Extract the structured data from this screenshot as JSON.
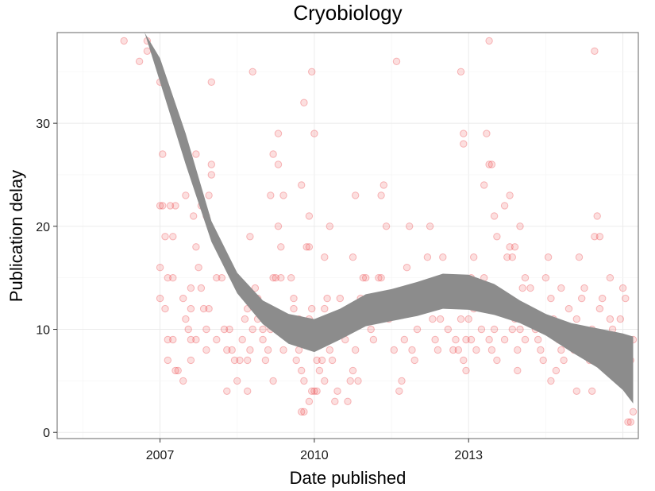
{
  "chart_data": {
    "type": "scatter",
    "title": "Cryobiology",
    "xlabel": "Date published",
    "ylabel": "Publication delay",
    "xlim": [
      2005.0,
      2016.3
    ],
    "ylim": [
      -0.6,
      38.8
    ],
    "x_ticks": [
      2007,
      2010,
      2013
    ],
    "x_tick_labels": [
      "2007",
      "2010",
      "2013"
    ],
    "y_ticks": [
      0,
      10,
      20,
      30
    ],
    "y_tick_labels": [
      "0",
      "10",
      "20",
      "30"
    ],
    "grid": true,
    "legend": "none",
    "point_color": "#e8262b",
    "band_color": "#8c8c8c",
    "points": [
      [
        2006.3,
        38
      ],
      [
        2006.6,
        36
      ],
      [
        2006.75,
        38
      ],
      [
        2006.75,
        37
      ],
      [
        2007.0,
        34
      ],
      [
        2007.05,
        27
      ],
      [
        2007.0,
        22
      ],
      [
        2007.05,
        22
      ],
      [
        2007.1,
        19
      ],
      [
        2007.25,
        19
      ],
      [
        2007.15,
        15
      ],
      [
        2007.25,
        15
      ],
      [
        2007.2,
        22
      ],
      [
        2007.3,
        22
      ],
      [
        2007.0,
        16
      ],
      [
        2007.0,
        13
      ],
      [
        2007.1,
        12
      ],
      [
        2007.15,
        9
      ],
      [
        2007.15,
        7
      ],
      [
        2007.25,
        9
      ],
      [
        2007.3,
        6
      ],
      [
        2007.35,
        6
      ],
      [
        2007.2,
        32
      ],
      [
        2007.45,
        13
      ],
      [
        2007.5,
        11
      ],
      [
        2007.55,
        10
      ],
      [
        2007.6,
        9
      ],
      [
        2007.6,
        12
      ],
      [
        2007.5,
        23
      ],
      [
        2007.65,
        21
      ],
      [
        2007.7,
        18
      ],
      [
        2007.75,
        16
      ],
      [
        2007.8,
        14
      ],
      [
        2007.6,
        14
      ],
      [
        2007.7,
        27
      ],
      [
        2007.8,
        22
      ],
      [
        2007.9,
        21
      ],
      [
        2007.95,
        23
      ],
      [
        2007.85,
        12
      ],
      [
        2007.95,
        12
      ],
      [
        2007.9,
        8
      ],
      [
        2007.6,
        7
      ],
      [
        2007.45,
        5
      ],
      [
        2007.9,
        10
      ],
      [
        2007.7,
        9
      ],
      [
        2008.0,
        34
      ],
      [
        2008.0,
        26
      ],
      [
        2008.0,
        25
      ],
      [
        2008.1,
        15
      ],
      [
        2008.2,
        15
      ],
      [
        2008.3,
        8
      ],
      [
        2008.25,
        10
      ],
      [
        2008.35,
        10
      ],
      [
        2008.4,
        8
      ],
      [
        2008.45,
        7
      ],
      [
        2008.5,
        5
      ],
      [
        2008.3,
        4
      ],
      [
        2008.1,
        9
      ],
      [
        2008.55,
        7
      ],
      [
        2008.6,
        9
      ],
      [
        2008.7,
        7
      ],
      [
        2008.75,
        8
      ],
      [
        2008.8,
        10
      ],
      [
        2008.85,
        14
      ],
      [
        2008.9,
        13
      ],
      [
        2008.7,
        12
      ],
      [
        2008.65,
        11
      ],
      [
        2008.7,
        4
      ],
      [
        2008.75,
        19
      ],
      [
        2008.9,
        11
      ],
      [
        2009.0,
        9
      ],
      [
        2009.05,
        7
      ],
      [
        2009.1,
        8
      ],
      [
        2009.15,
        10
      ],
      [
        2009.0,
        10
      ],
      [
        2009.15,
        23
      ],
      [
        2009.2,
        27
      ],
      [
        2009.3,
        29
      ],
      [
        2009.3,
        26
      ],
      [
        2009.2,
        15
      ],
      [
        2009.25,
        15
      ],
      [
        2009.35,
        15
      ],
      [
        2009.4,
        8
      ],
      [
        2009.45,
        10
      ],
      [
        2009.4,
        23
      ],
      [
        2009.3,
        20
      ],
      [
        2009.35,
        18
      ],
      [
        2009.2,
        5
      ],
      [
        2008.8,
        35
      ],
      [
        2009.5,
        10
      ],
      [
        2009.55,
        15
      ],
      [
        2009.6,
        13
      ],
      [
        2009.65,
        7
      ],
      [
        2009.7,
        8
      ],
      [
        2009.75,
        6
      ],
      [
        2009.8,
        5
      ],
      [
        2009.85,
        9
      ],
      [
        2009.9,
        11
      ],
      [
        2009.95,
        12
      ],
      [
        2009.75,
        24
      ],
      [
        2009.8,
        32
      ],
      [
        2009.85,
        18
      ],
      [
        2009.9,
        18
      ],
      [
        2009.95,
        35
      ],
      [
        2010.0,
        29
      ],
      [
        2009.9,
        21
      ],
      [
        2009.6,
        12
      ],
      [
        2009.7,
        11
      ],
      [
        2009.75,
        2
      ],
      [
        2009.8,
        2
      ],
      [
        2009.9,
        3
      ],
      [
        2009.95,
        4
      ],
      [
        2010.0,
        4
      ],
      [
        2010.05,
        4
      ],
      [
        2010.1,
        6
      ],
      [
        2010.15,
        7
      ],
      [
        2010.2,
        5
      ],
      [
        2010.05,
        7
      ],
      [
        2010.1,
        10
      ],
      [
        2010.2,
        12
      ],
      [
        2010.25,
        13
      ],
      [
        2010.3,
        8
      ],
      [
        2010.35,
        7
      ],
      [
        2010.2,
        17
      ],
      [
        2010.3,
        20
      ],
      [
        2010.4,
        3
      ],
      [
        2010.45,
        4
      ],
      [
        2010.5,
        13
      ],
      [
        2010.55,
        10
      ],
      [
        2010.6,
        9
      ],
      [
        2010.65,
        3
      ],
      [
        2010.7,
        5
      ],
      [
        2010.75,
        6
      ],
      [
        2010.8,
        8
      ],
      [
        2010.85,
        5
      ],
      [
        2010.9,
        13
      ],
      [
        2010.75,
        17
      ],
      [
        2010.8,
        23
      ],
      [
        2010.95,
        15
      ],
      [
        2011.0,
        15
      ],
      [
        2011.05,
        13
      ],
      [
        2011.1,
        10
      ],
      [
        2011.15,
        9
      ],
      [
        2011.2,
        12
      ],
      [
        2011.25,
        15
      ],
      [
        2011.3,
        15
      ],
      [
        2011.3,
        23
      ],
      [
        2011.35,
        24
      ],
      [
        2011.4,
        20
      ],
      [
        2011.45,
        11
      ],
      [
        2011.5,
        12
      ],
      [
        2011.55,
        8
      ],
      [
        2011.6,
        36
      ],
      [
        2011.65,
        4
      ],
      [
        2011.7,
        5
      ],
      [
        2011.75,
        9
      ],
      [
        2011.8,
        16
      ],
      [
        2011.85,
        20
      ],
      [
        2011.9,
        8
      ],
      [
        2011.95,
        7
      ],
      [
        2012.0,
        10
      ],
      [
        2012.05,
        13
      ],
      [
        2012.1,
        14
      ],
      [
        2012.15,
        13
      ],
      [
        2012.2,
        17
      ],
      [
        2012.25,
        20
      ],
      [
        2012.3,
        11
      ],
      [
        2012.35,
        9
      ],
      [
        2012.4,
        8
      ],
      [
        2012.45,
        11
      ],
      [
        2012.5,
        17
      ],
      [
        2012.55,
        14
      ],
      [
        2012.6,
        10
      ],
      [
        2012.65,
        15
      ],
      [
        2012.7,
        8
      ],
      [
        2012.75,
        9
      ],
      [
        2012.8,
        8
      ],
      [
        2012.85,
        11
      ],
      [
        2012.9,
        7
      ],
      [
        2012.95,
        9
      ],
      [
        2013.0,
        14
      ],
      [
        2013.05,
        15
      ],
      [
        2013.1,
        17
      ],
      [
        2012.95,
        6
      ],
      [
        2012.9,
        29
      ],
      [
        2012.85,
        35
      ],
      [
        2012.9,
        28
      ],
      [
        2013.0,
        11
      ],
      [
        2013.05,
        9
      ],
      [
        2013.1,
        12
      ],
      [
        2013.15,
        8
      ],
      [
        2013.2,
        13
      ],
      [
        2013.25,
        10
      ],
      [
        2013.3,
        15
      ],
      [
        2013.35,
        14
      ],
      [
        2013.4,
        9
      ],
      [
        2013.45,
        8
      ],
      [
        2013.5,
        10
      ],
      [
        2013.55,
        7
      ],
      [
        2013.3,
        24
      ],
      [
        2013.35,
        29
      ],
      [
        2013.4,
        26
      ],
      [
        2013.45,
        26
      ],
      [
        2013.4,
        38
      ],
      [
        2013.5,
        21
      ],
      [
        2013.55,
        19
      ],
      [
        2013.6,
        12
      ],
      [
        2013.65,
        13
      ],
      [
        2013.7,
        9
      ],
      [
        2013.75,
        17
      ],
      [
        2013.8,
        18
      ],
      [
        2013.85,
        10
      ],
      [
        2013.9,
        11
      ],
      [
        2013.95,
        8
      ],
      [
        2014.0,
        10
      ],
      [
        2014.05,
        14
      ],
      [
        2014.1,
        15
      ],
      [
        2013.7,
        22
      ],
      [
        2013.8,
        23
      ],
      [
        2013.85,
        17
      ],
      [
        2013.9,
        18
      ],
      [
        2014.0,
        20
      ],
      [
        2013.95,
        6
      ],
      [
        2014.1,
        9
      ],
      [
        2014.15,
        12
      ],
      [
        2014.2,
        14
      ],
      [
        2014.25,
        11
      ],
      [
        2014.3,
        10
      ],
      [
        2014.35,
        9
      ],
      [
        2014.4,
        8
      ],
      [
        2014.45,
        7
      ],
      [
        2014.5,
        15
      ],
      [
        2014.55,
        17
      ],
      [
        2014.6,
        13
      ],
      [
        2014.65,
        11
      ],
      [
        2014.7,
        10
      ],
      [
        2014.75,
        9
      ],
      [
        2014.8,
        8
      ],
      [
        2014.85,
        7
      ],
      [
        2014.6,
        5
      ],
      [
        2014.7,
        6
      ],
      [
        2014.8,
        14
      ],
      [
        2014.9,
        10
      ],
      [
        2014.95,
        12
      ],
      [
        2015.0,
        9
      ],
      [
        2015.05,
        8
      ],
      [
        2015.1,
        11
      ],
      [
        2015.15,
        17
      ],
      [
        2015.2,
        13
      ],
      [
        2015.25,
        14
      ],
      [
        2015.3,
        9
      ],
      [
        2015.35,
        7
      ],
      [
        2015.4,
        10
      ],
      [
        2015.45,
        9
      ],
      [
        2015.5,
        8
      ],
      [
        2015.55,
        12
      ],
      [
        2015.1,
        4
      ],
      [
        2015.4,
        4
      ],
      [
        2015.45,
        37
      ],
      [
        2015.5,
        21
      ],
      [
        2015.55,
        19
      ],
      [
        2015.45,
        19
      ],
      [
        2015.6,
        13
      ],
      [
        2015.65,
        9
      ],
      [
        2015.7,
        8
      ],
      [
        2015.75,
        11
      ],
      [
        2015.8,
        10
      ],
      [
        2015.85,
        9
      ],
      [
        2015.9,
        7
      ],
      [
        2015.95,
        11
      ],
      [
        2016.0,
        14
      ],
      [
        2016.05,
        13
      ],
      [
        2016.1,
        9
      ],
      [
        2016.15,
        7
      ],
      [
        2016.1,
        1
      ],
      [
        2016.15,
        1
      ],
      [
        2016.2,
        2
      ],
      [
        2016.2,
        9
      ],
      [
        2016.05,
        6
      ],
      [
        2015.75,
        15
      ]
    ],
    "smooth": {
      "x": [
        2006.7,
        2007.0,
        2007.5,
        2008.0,
        2008.5,
        2009.0,
        2009.5,
        2010.0,
        2010.5,
        2011.0,
        2011.5,
        2012.0,
        2012.5,
        2013.0,
        2013.5,
        2014.0,
        2014.5,
        2015.0,
        2015.5,
        2016.0,
        2016.2
      ],
      "lower": [
        38.8,
        34.0,
        26.0,
        18.5,
        13.5,
        10.5,
        8.6,
        7.8,
        9.0,
        10.3,
        10.8,
        11.3,
        12.0,
        11.9,
        11.4,
        10.6,
        9.4,
        7.8,
        6.3,
        4.1,
        2.8
      ],
      "upper": [
        38.8,
        36.3,
        29.0,
        20.5,
        15.5,
        12.8,
        11.5,
        11.0,
        12.0,
        13.4,
        13.9,
        14.6,
        15.4,
        15.3,
        14.4,
        12.8,
        11.5,
        10.6,
        10.1,
        9.6,
        9.3
      ]
    }
  }
}
